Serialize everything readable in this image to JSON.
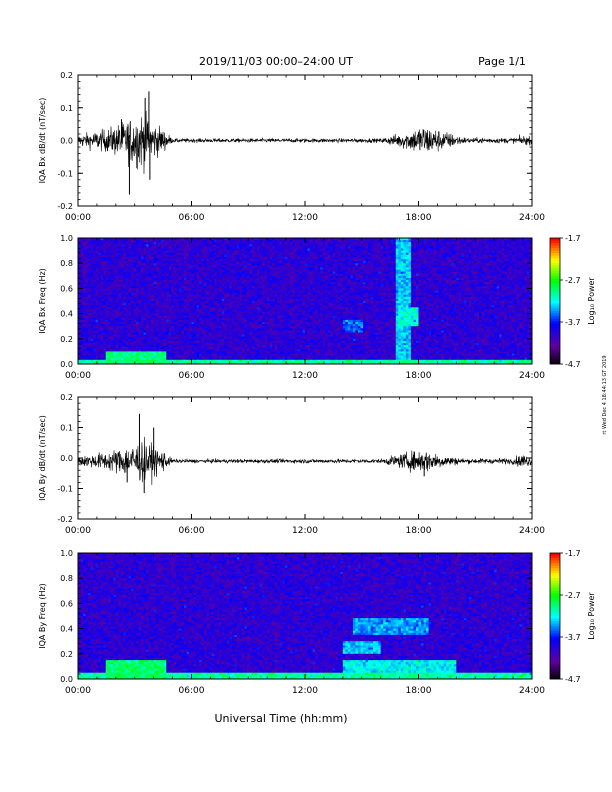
{
  "header": {
    "title": "2019/11/03  00:00–24:00 UT",
    "page": "Page 1/1"
  },
  "footer": {
    "xlabel": "Universal Time (hh:mm)"
  },
  "side_note": "rt Wed Dec 4 18:44:13 GT 2019",
  "colorbar": {
    "label": "Log₁₀ Power",
    "ticks": [
      "-1.7",
      "-2.7",
      "-3.7",
      "-4.7"
    ],
    "colors": [
      "#ff0000",
      "#ffff00",
      "#00ff00",
      "#00ffff",
      "#0000ff",
      "#6000a0",
      "#000000"
    ]
  },
  "chart_data": [
    {
      "type": "line",
      "name": "bx-dbdt",
      "ylabel": "IQA Bx dB/dt (nT/sec)",
      "xlim": [
        0,
        24
      ],
      "ylim": [
        -0.2,
        0.2
      ],
      "yticks": [
        "0.2",
        "0.1",
        "0.0",
        "-0.1",
        "-0.2"
      ],
      "xticks": [
        "00:00",
        "06:00",
        "12:00",
        "18:00",
        "24:00"
      ],
      "baseline": 0.0,
      "envelope": [
        {
          "t": 0.0,
          "amp": 0.018
        },
        {
          "t": 1.5,
          "amp": 0.035
        },
        {
          "t": 2.5,
          "amp": 0.06
        },
        {
          "t": 3.3,
          "amp": 0.09
        },
        {
          "t": 4.6,
          "amp": 0.03
        },
        {
          "t": 5.0,
          "amp": 0.006
        },
        {
          "t": 16.0,
          "amp": 0.006
        },
        {
          "t": 17.5,
          "amp": 0.03
        },
        {
          "t": 18.2,
          "amp": 0.05
        },
        {
          "t": 19.3,
          "amp": 0.03
        },
        {
          "t": 20.5,
          "amp": 0.008
        },
        {
          "t": 23.0,
          "amp": 0.008
        },
        {
          "t": 23.5,
          "amp": 0.015
        },
        {
          "t": 24.0,
          "amp": 0.012
        }
      ],
      "spikes": [
        {
          "t": 2.72,
          "value": -0.165
        },
        {
          "t": 3.55,
          "value": 0.13
        },
        {
          "t": 3.75,
          "value": 0.15
        },
        {
          "t": 3.8,
          "value": -0.12
        },
        {
          "t": 2.3,
          "value": 0.065
        }
      ]
    },
    {
      "type": "heatmap",
      "name": "bx-spectrogram",
      "ylabel": "IQA Bx Freq (Hz)",
      "xlim": [
        0,
        24
      ],
      "ylim": [
        0.0,
        1.0
      ],
      "yticks": [
        "1.0",
        "0.8",
        "0.6",
        "0.4",
        "0.2",
        "0.0"
      ],
      "xticks": [
        "00:00",
        "06:00",
        "12:00",
        "18:00",
        "24:00"
      ],
      "zlim": [
        -4.7,
        -1.7
      ],
      "background_log_power": -3.95,
      "features": [
        {
          "t0": 0.0,
          "t1": 24.0,
          "f0": 0.0,
          "f1": 0.03,
          "log_power": -3.0
        },
        {
          "t0": 1.5,
          "t1": 4.6,
          "f0": 0.0,
          "f1": 0.1,
          "log_power": -2.95
        },
        {
          "t0": 16.8,
          "t1": 17.6,
          "f0": 0.0,
          "f1": 1.0,
          "log_power": -3.3
        },
        {
          "t0": 17.0,
          "t1": 18.0,
          "f0": 0.3,
          "f1": 0.45,
          "log_power": -3.15
        },
        {
          "t0": 14.0,
          "t1": 15.0,
          "f0": 0.25,
          "f1": 0.35,
          "log_power": -3.5
        }
      ]
    },
    {
      "type": "line",
      "name": "by-dbdt",
      "ylabel": "IQA By dB/dt (nT/sec)",
      "xlim": [
        0,
        24
      ],
      "ylim": [
        -0.2,
        0.2
      ],
      "yticks": [
        "0.2",
        "0.1",
        "0.0",
        "-0.1",
        "-0.2"
      ],
      "xticks": [
        "00:00",
        "06:00",
        "12:00",
        "18:00",
        "24:00"
      ],
      "baseline": -0.01,
      "envelope": [
        {
          "t": 0.0,
          "amp": 0.015
        },
        {
          "t": 1.5,
          "amp": 0.03
        },
        {
          "t": 2.6,
          "amp": 0.05
        },
        {
          "t": 3.4,
          "amp": 0.07
        },
        {
          "t": 4.5,
          "amp": 0.035
        },
        {
          "t": 5.0,
          "amp": 0.006
        },
        {
          "t": 16.0,
          "amp": 0.007
        },
        {
          "t": 17.5,
          "amp": 0.03
        },
        {
          "t": 18.3,
          "amp": 0.04
        },
        {
          "t": 19.3,
          "amp": 0.02
        },
        {
          "t": 20.5,
          "amp": 0.008
        },
        {
          "t": 23.0,
          "amp": 0.01
        },
        {
          "t": 23.5,
          "amp": 0.025
        },
        {
          "t": 24.0,
          "amp": 0.012
        }
      ],
      "spikes": [
        {
          "t": 3.25,
          "value": 0.145
        },
        {
          "t": 3.5,
          "value": -0.115
        },
        {
          "t": 2.6,
          "value": -0.08
        },
        {
          "t": 4.0,
          "value": 0.1
        },
        {
          "t": 18.3,
          "value": -0.06
        }
      ]
    },
    {
      "type": "heatmap",
      "name": "by-spectrogram",
      "ylabel": "IQA By Freq (Hz)",
      "xlim": [
        0,
        24
      ],
      "ylim": [
        0.0,
        1.0
      ],
      "yticks": [
        "1.0",
        "0.8",
        "0.6",
        "0.4",
        "0.2",
        "0.0"
      ],
      "xticks": [
        "00:00",
        "06:00",
        "12:00",
        "18:00",
        "24:00"
      ],
      "zlim": [
        -4.7,
        -1.7
      ],
      "background_log_power": -3.95,
      "features": [
        {
          "t0": 0.0,
          "t1": 24.0,
          "f0": 0.0,
          "f1": 0.05,
          "log_power": -3.0
        },
        {
          "t0": 1.5,
          "t1": 4.6,
          "f0": 0.0,
          "f1": 0.15,
          "log_power": -2.9
        },
        {
          "t0": 14.0,
          "t1": 20.0,
          "f0": 0.0,
          "f1": 0.15,
          "log_power": -3.2
        },
        {
          "t0": 14.5,
          "t1": 18.5,
          "f0": 0.35,
          "f1": 0.48,
          "log_power": -3.4
        },
        {
          "t0": 14.0,
          "t1": 16.0,
          "f0": 0.2,
          "f1": 0.3,
          "log_power": -3.3
        }
      ]
    }
  ]
}
